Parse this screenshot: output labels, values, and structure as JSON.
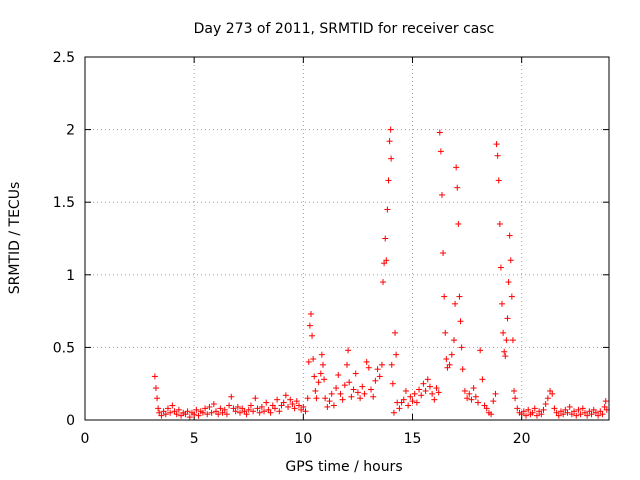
{
  "chart_data": {
    "type": "scatter",
    "title": "Day 273 of 2011, SRMTID for receiver casc",
    "xlabel": "GPS time / hours",
    "ylabel": "SRMTID / TECUs",
    "xlim": [
      0,
      24
    ],
    "ylim": [
      0,
      2.5
    ],
    "xticks": [
      0,
      5,
      10,
      15,
      20
    ],
    "yticks": [
      0,
      0.5,
      1,
      1.5,
      2,
      2.5
    ],
    "xtick_labels": [
      "0",
      "5",
      "10",
      "15",
      "20"
    ],
    "ytick_labels": [
      "0",
      "0.5",
      "1",
      "1.5",
      "2",
      "2.5"
    ],
    "grid": true,
    "marker": "+",
    "color": "#ff0000",
    "series": [
      {
        "name": "SRMTID",
        "points": [
          [
            3.2,
            0.3
          ],
          [
            3.25,
            0.22
          ],
          [
            3.3,
            0.15
          ],
          [
            3.35,
            0.08
          ],
          [
            3.4,
            0.05
          ],
          [
            3.5,
            0.03
          ],
          [
            3.6,
            0.06
          ],
          [
            3.7,
            0.04
          ],
          [
            3.8,
            0.08
          ],
          [
            3.9,
            0.05
          ],
          [
            4.0,
            0.1
          ],
          [
            4.1,
            0.06
          ],
          [
            4.2,
            0.04
          ],
          [
            4.3,
            0.07
          ],
          [
            4.4,
            0.03
          ],
          [
            4.5,
            0.05
          ],
          [
            4.6,
            0.04
          ],
          [
            4.7,
            0.06
          ],
          [
            4.8,
            0.02
          ],
          [
            4.9,
            0.05
          ],
          [
            5.0,
            0.04
          ],
          [
            5.1,
            0.07
          ],
          [
            5.2,
            0.03
          ],
          [
            5.3,
            0.06
          ],
          [
            5.4,
            0.05
          ],
          [
            5.5,
            0.08
          ],
          [
            5.6,
            0.04
          ],
          [
            5.7,
            0.09
          ],
          [
            5.8,
            0.05
          ],
          [
            5.9,
            0.11
          ],
          [
            6.0,
            0.06
          ],
          [
            6.1,
            0.04
          ],
          [
            6.2,
            0.08
          ],
          [
            6.3,
            0.05
          ],
          [
            6.4,
            0.07
          ],
          [
            6.5,
            0.04
          ],
          [
            6.6,
            0.1
          ],
          [
            6.7,
            0.16
          ],
          [
            6.8,
            0.08
          ],
          [
            6.9,
            0.06
          ],
          [
            7.0,
            0.09
          ],
          [
            7.1,
            0.05
          ],
          [
            7.2,
            0.08
          ],
          [
            7.3,
            0.06
          ],
          [
            7.4,
            0.04
          ],
          [
            7.5,
            0.07
          ],
          [
            7.6,
            0.1
          ],
          [
            7.7,
            0.06
          ],
          [
            7.8,
            0.15
          ],
          [
            7.9,
            0.08
          ],
          [
            8.0,
            0.05
          ],
          [
            8.1,
            0.09
          ],
          [
            8.2,
            0.06
          ],
          [
            8.3,
            0.12
          ],
          [
            8.4,
            0.07
          ],
          [
            8.5,
            0.05
          ],
          [
            8.6,
            0.1
          ],
          [
            8.7,
            0.08
          ],
          [
            8.8,
            0.14
          ],
          [
            8.9,
            0.06
          ],
          [
            9.0,
            0.1
          ],
          [
            9.1,
            0.12
          ],
          [
            9.2,
            0.17
          ],
          [
            9.3,
            0.09
          ],
          [
            9.4,
            0.14
          ],
          [
            9.5,
            0.11
          ],
          [
            9.6,
            0.08
          ],
          [
            9.7,
            0.13
          ],
          [
            9.8,
            0.1
          ],
          [
            9.9,
            0.07
          ],
          [
            10.0,
            0.09
          ],
          [
            10.1,
            0.06
          ],
          [
            10.2,
            0.15
          ],
          [
            10.25,
            0.4
          ],
          [
            10.3,
            0.65
          ],
          [
            10.35,
            0.73
          ],
          [
            10.4,
            0.58
          ],
          [
            10.45,
            0.42
          ],
          [
            10.5,
            0.3
          ],
          [
            10.55,
            0.2
          ],
          [
            10.6,
            0.15
          ],
          [
            10.7,
            0.26
          ],
          [
            10.8,
            0.32
          ],
          [
            10.85,
            0.45
          ],
          [
            10.9,
            0.38
          ],
          [
            10.95,
            0.28
          ],
          [
            11.0,
            0.15
          ],
          [
            11.1,
            0.09
          ],
          [
            11.2,
            0.13
          ],
          [
            11.3,
            0.18
          ],
          [
            11.4,
            0.1
          ],
          [
            11.5,
            0.22
          ],
          [
            11.6,
            0.31
          ],
          [
            11.7,
            0.18
          ],
          [
            11.8,
            0.14
          ],
          [
            11.9,
            0.24
          ],
          [
            12.0,
            0.38
          ],
          [
            12.05,
            0.48
          ],
          [
            12.1,
            0.26
          ],
          [
            12.2,
            0.16
          ],
          [
            12.3,
            0.21
          ],
          [
            12.4,
            0.32
          ],
          [
            12.5,
            0.19
          ],
          [
            12.6,
            0.15
          ],
          [
            12.7,
            0.23
          ],
          [
            12.8,
            0.18
          ],
          [
            12.9,
            0.4
          ],
          [
            13.0,
            0.36
          ],
          [
            13.1,
            0.21
          ],
          [
            13.2,
            0.16
          ],
          [
            13.3,
            0.27
          ],
          [
            13.4,
            0.35
          ],
          [
            13.5,
            0.3
          ],
          [
            13.6,
            0.38
          ],
          [
            13.65,
            0.95
          ],
          [
            13.7,
            1.08
          ],
          [
            13.75,
            1.25
          ],
          [
            13.8,
            1.1
          ],
          [
            13.85,
            1.45
          ],
          [
            13.9,
            1.65
          ],
          [
            13.95,
            1.92
          ],
          [
            14.0,
            2.0
          ],
          [
            14.02,
            1.8
          ],
          [
            14.05,
            0.38
          ],
          [
            14.1,
            0.25
          ],
          [
            14.15,
            0.05
          ],
          [
            14.2,
            0.6
          ],
          [
            14.25,
            0.45
          ],
          [
            14.3,
            0.12
          ],
          [
            14.4,
            0.08
          ],
          [
            14.5,
            0.12
          ],
          [
            14.6,
            0.14
          ],
          [
            14.7,
            0.2
          ],
          [
            14.8,
            0.1
          ],
          [
            14.9,
            0.16
          ],
          [
            15.0,
            0.13
          ],
          [
            15.1,
            0.18
          ],
          [
            15.2,
            0.12
          ],
          [
            15.3,
            0.21
          ],
          [
            15.4,
            0.17
          ],
          [
            15.5,
            0.25
          ],
          [
            15.6,
            0.2
          ],
          [
            15.7,
            0.28
          ],
          [
            15.8,
            0.23
          ],
          [
            15.9,
            0.18
          ],
          [
            16.0,
            0.14
          ],
          [
            16.1,
            0.22
          ],
          [
            16.2,
            0.19
          ],
          [
            16.25,
            1.98
          ],
          [
            16.3,
            1.85
          ],
          [
            16.35,
            1.55
          ],
          [
            16.4,
            1.15
          ],
          [
            16.45,
            0.85
          ],
          [
            16.5,
            0.6
          ],
          [
            16.55,
            0.42
          ],
          [
            16.6,
            0.36
          ],
          [
            16.7,
            0.38
          ],
          [
            16.8,
            0.45
          ],
          [
            16.9,
            0.55
          ],
          [
            16.95,
            0.8
          ],
          [
            17.0,
            1.74
          ],
          [
            17.05,
            1.6
          ],
          [
            17.1,
            1.35
          ],
          [
            17.15,
            0.85
          ],
          [
            17.2,
            0.68
          ],
          [
            17.25,
            0.5
          ],
          [
            17.3,
            0.35
          ],
          [
            17.4,
            0.2
          ],
          [
            17.5,
            0.15
          ],
          [
            17.6,
            0.18
          ],
          [
            17.7,
            0.14
          ],
          [
            17.8,
            0.22
          ],
          [
            17.9,
            0.16
          ],
          [
            18.0,
            0.12
          ],
          [
            18.1,
            0.48
          ],
          [
            18.2,
            0.28
          ],
          [
            18.3,
            0.1
          ],
          [
            18.4,
            0.08
          ],
          [
            18.5,
            0.05
          ],
          [
            18.6,
            0.04
          ],
          [
            18.7,
            0.13
          ],
          [
            18.8,
            0.18
          ],
          [
            18.85,
            1.9
          ],
          [
            18.9,
            1.82
          ],
          [
            18.95,
            1.65
          ],
          [
            19.0,
            1.35
          ],
          [
            19.05,
            1.05
          ],
          [
            19.1,
            0.8
          ],
          [
            19.15,
            0.6
          ],
          [
            19.2,
            0.47
          ],
          [
            19.25,
            0.44
          ],
          [
            19.3,
            0.55
          ],
          [
            19.35,
            0.7
          ],
          [
            19.4,
            0.95
          ],
          [
            19.45,
            1.27
          ],
          [
            19.5,
            1.1
          ],
          [
            19.55,
            0.85
          ],
          [
            19.6,
            0.55
          ],
          [
            19.65,
            0.2
          ],
          [
            19.7,
            0.15
          ],
          [
            19.8,
            0.08
          ],
          [
            19.9,
            0.05
          ],
          [
            20.0,
            0.04
          ],
          [
            20.1,
            0.06
          ],
          [
            20.2,
            0.03
          ],
          [
            20.3,
            0.07
          ],
          [
            20.4,
            0.04
          ],
          [
            20.5,
            0.05
          ],
          [
            20.6,
            0.08
          ],
          [
            20.7,
            0.03
          ],
          [
            20.8,
            0.06
          ],
          [
            20.9,
            0.04
          ],
          [
            21.0,
            0.07
          ],
          [
            21.1,
            0.11
          ],
          [
            21.2,
            0.15
          ],
          [
            21.3,
            0.2
          ],
          [
            21.4,
            0.18
          ],
          [
            21.5,
            0.08
          ],
          [
            21.6,
            0.05
          ],
          [
            21.7,
            0.03
          ],
          [
            21.8,
            0.06
          ],
          [
            21.9,
            0.04
          ],
          [
            22.0,
            0.07
          ],
          [
            22.1,
            0.05
          ],
          [
            22.2,
            0.09
          ],
          [
            22.3,
            0.04
          ],
          [
            22.4,
            0.06
          ],
          [
            22.5,
            0.03
          ],
          [
            22.6,
            0.07
          ],
          [
            22.7,
            0.04
          ],
          [
            22.8,
            0.08
          ],
          [
            22.9,
            0.05
          ],
          [
            23.0,
            0.03
          ],
          [
            23.1,
            0.06
          ],
          [
            23.2,
            0.04
          ],
          [
            23.3,
            0.07
          ],
          [
            23.4,
            0.05
          ],
          [
            23.5,
            0.03
          ],
          [
            23.6,
            0.06
          ],
          [
            23.7,
            0.04
          ],
          [
            23.8,
            0.09
          ],
          [
            23.85,
            0.13
          ],
          [
            23.9,
            0.07
          ]
        ]
      }
    ]
  }
}
